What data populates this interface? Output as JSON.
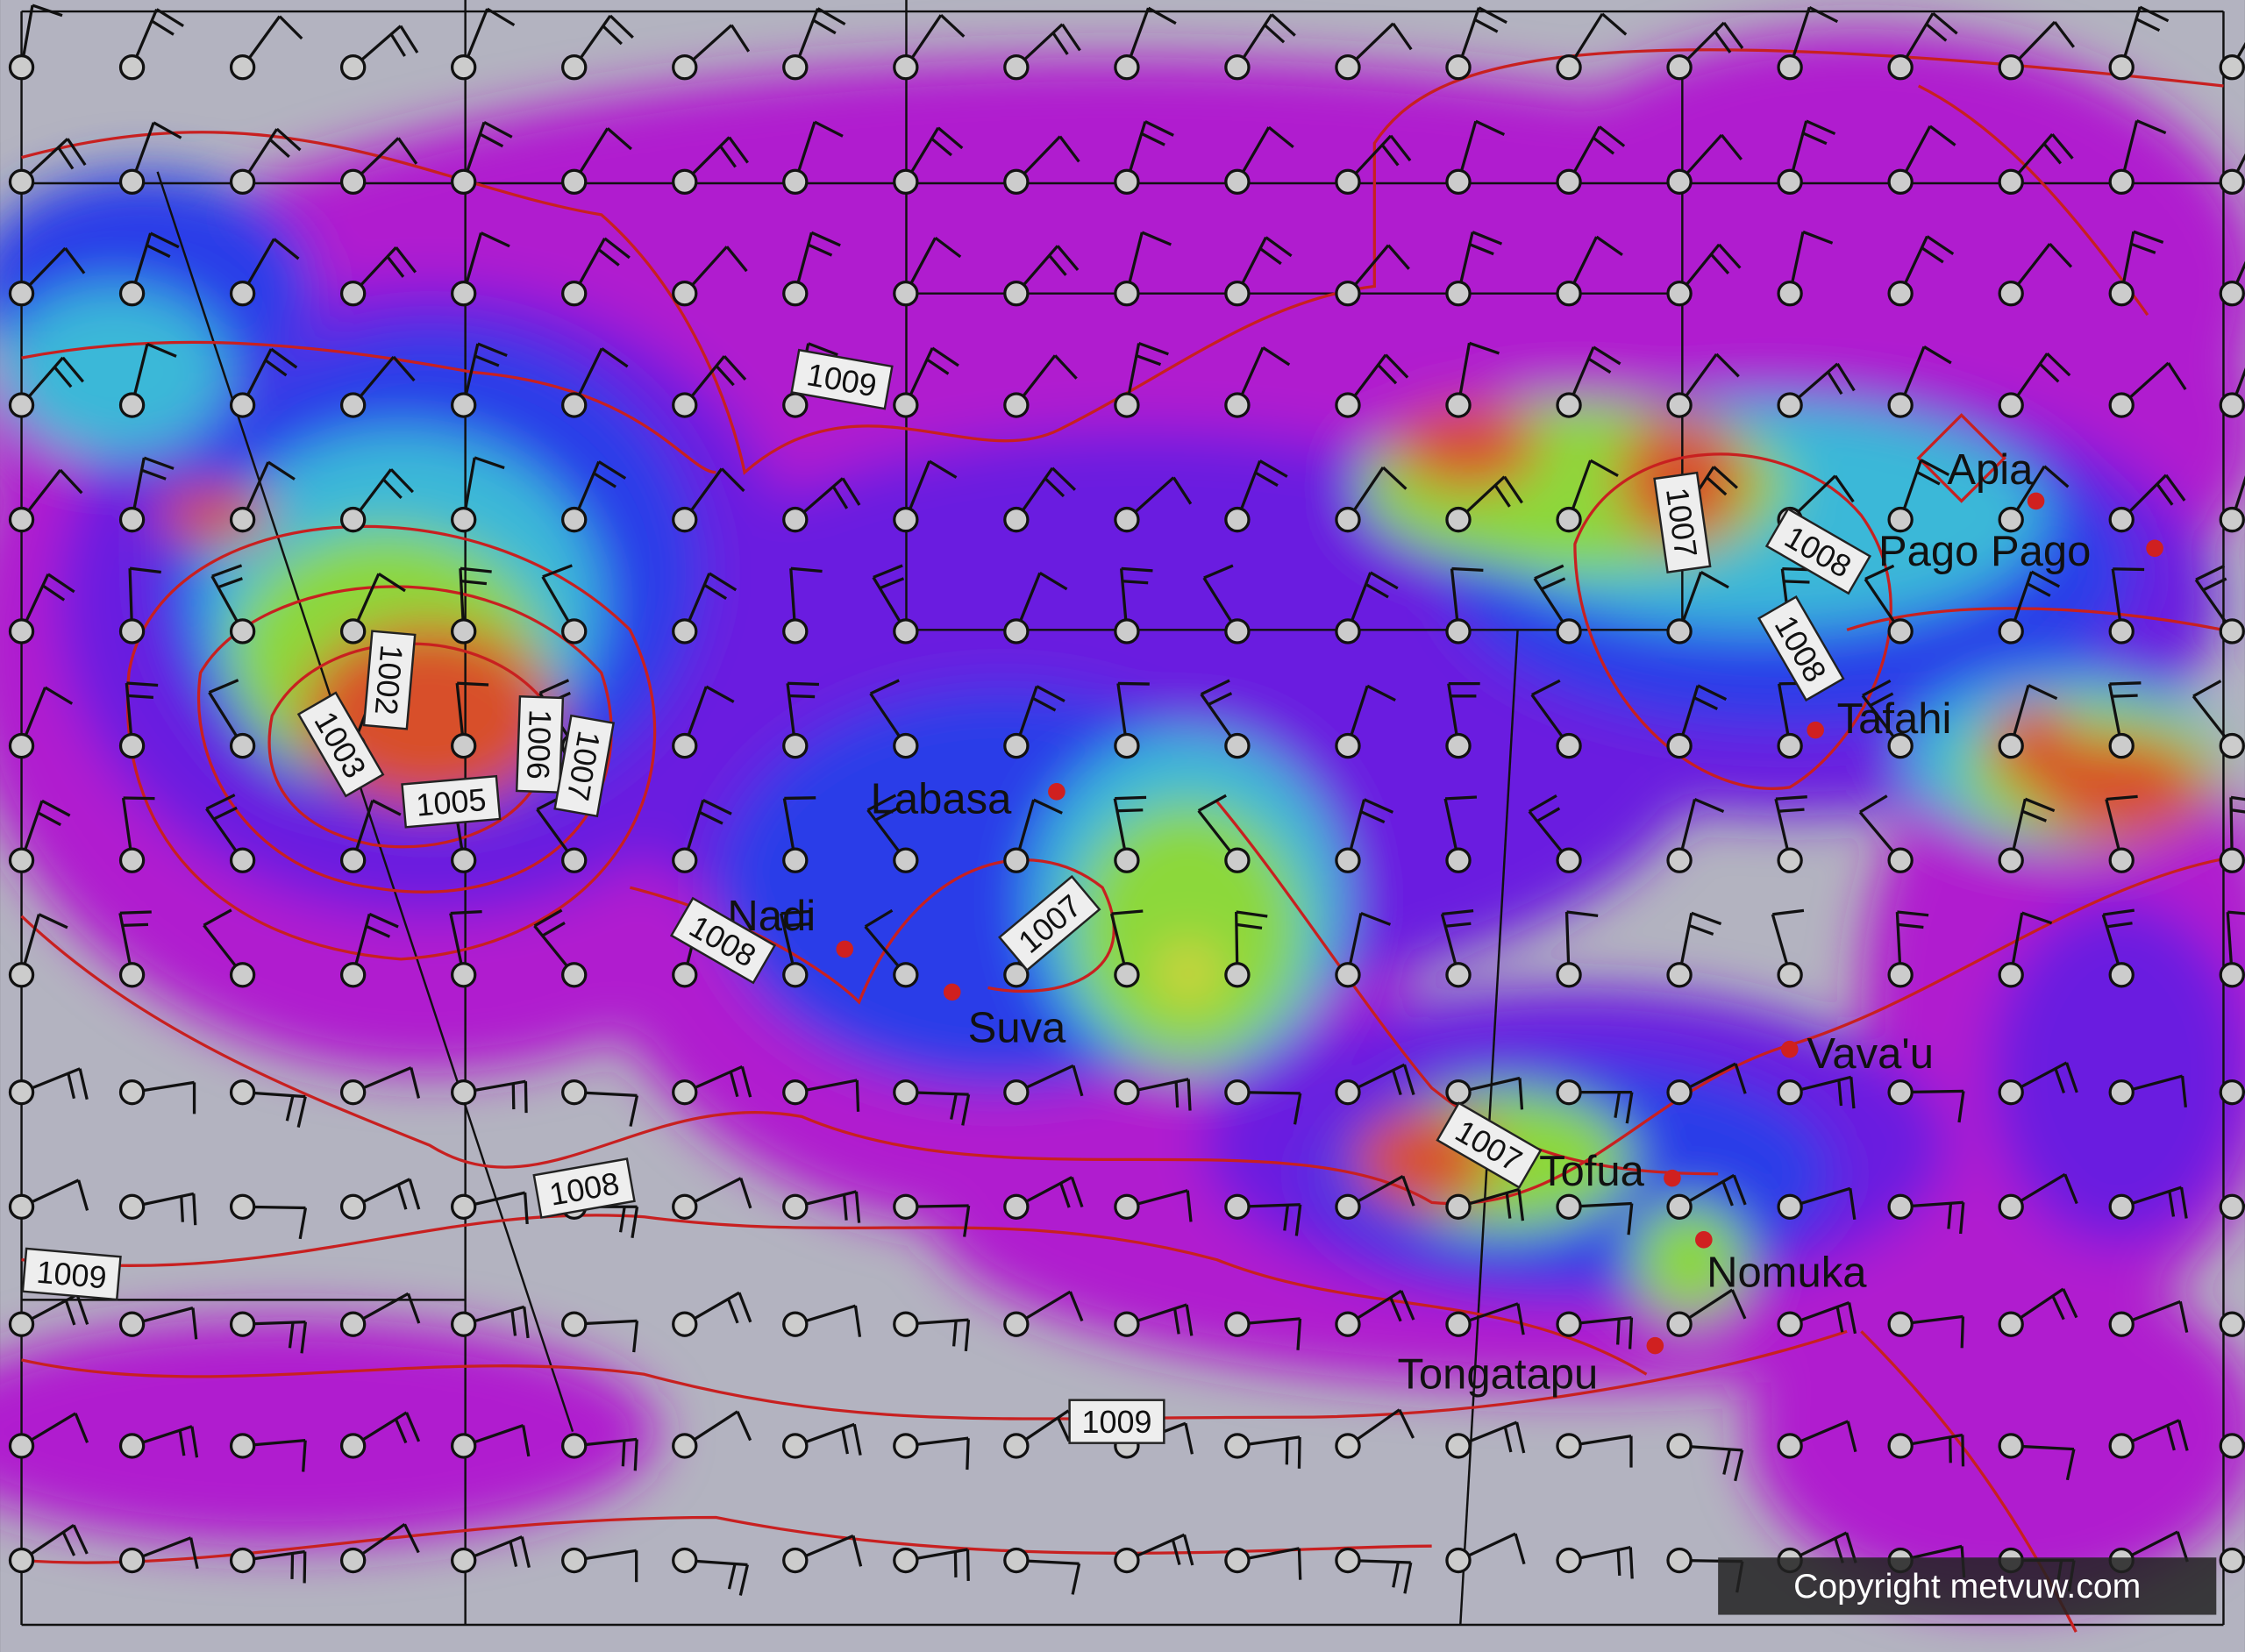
{
  "places": [
    {
      "label": "Apia"
    },
    {
      "label": "Pago Pago"
    },
    {
      "label": "Tafahi"
    },
    {
      "label": "Labasa"
    },
    {
      "label": "Nadi"
    },
    {
      "label": "Suva"
    },
    {
      "label": "Vava'u"
    },
    {
      "label": "Tofua"
    },
    {
      "label": "Nomuka"
    },
    {
      "label": "Tongatapu"
    }
  ],
  "isobar_labels": [
    "1009",
    "1002",
    "1003",
    "1005",
    "1006",
    "1007",
    "1008",
    "1007",
    "1007",
    "1008",
    "1008",
    "1008",
    "1009",
    "1009",
    "1007"
  ],
  "copyright": "Copyright metvuw.com"
}
